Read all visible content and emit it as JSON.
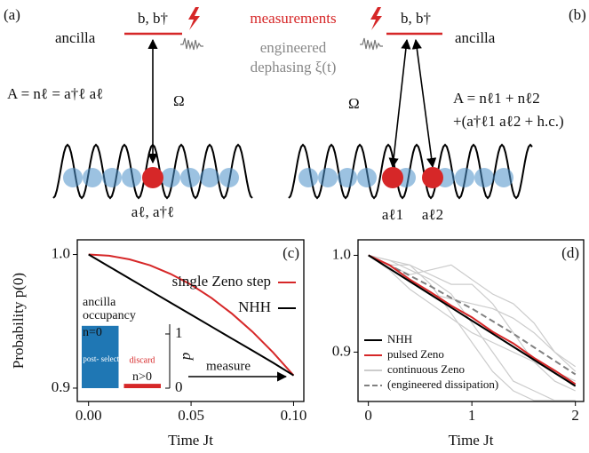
{
  "diagram": {
    "panel_a": "(a)",
    "panel_b": "(b)",
    "ancilla_left": "ancilla",
    "ancilla_right": "ancilla",
    "ops_left": "b, b†",
    "ops_right": "b, b†",
    "measurements": "measurements",
    "dephasing": [
      "engineered",
      "dephasing ξ(t)"
    ],
    "coupling_left": "A = nℓ = a†ℓ aℓ",
    "coupling_right": [
      "A = nℓ1 + nℓ2",
      "+(a†ℓ1 aℓ2 + h.c.)"
    ],
    "omega_left": "Ω",
    "omega_right": "Ω",
    "site_left": "aℓ, a†ℓ",
    "site_right": [
      "aℓ1",
      "aℓ2"
    ]
  },
  "chart_data": [
    {
      "type": "line",
      "panel": "(c)",
      "ylabel": "Probability p(0)",
      "xlabel": "Time Jt",
      "x": [
        0,
        0.01,
        0.02,
        0.03,
        0.04,
        0.05,
        0.06,
        0.07,
        0.08,
        0.09,
        0.1
      ],
      "xlim": [
        -0.0055,
        0.105
      ],
      "ylim": [
        0.89,
        1.011
      ],
      "xticks": [
        {
          "value": 0,
          "label": "0.00"
        },
        0.05,
        {
          "value": 0.1,
          "label": "0.10"
        }
      ],
      "yticks": [
        0.9,
        {
          "value": 1,
          "label": "1.0"
        }
      ],
      "series": [
        {
          "name": "single Zeno step",
          "color": "#d62728",
          "values": [
            1,
            0.9991,
            0.9964,
            0.9919,
            0.9855,
            0.9774,
            0.9674,
            0.9557,
            0.9421,
            0.9267,
            0.9095
          ]
        },
        {
          "name": "NHH",
          "color": "#000000",
          "values": [
            1,
            0.991,
            0.982,
            0.973,
            0.964,
            0.955,
            0.946,
            0.937,
            0.928,
            0.919,
            0.9095
          ]
        }
      ],
      "annotation": "measure"
    },
    {
      "type": "bar",
      "title": [
        "ancilla",
        "occupancy"
      ],
      "ylabel": "p",
      "categories": [
        "n=0",
        "n>0"
      ],
      "values": [
        1.15,
        0.08
      ],
      "colors": [
        "#1f77b4",
        "#d62728"
      ],
      "ylim": [
        0,
        1.18
      ],
      "yticks": [
        0,
        1
      ],
      "bar_labels": [
        "post- select",
        "discard"
      ]
    },
    {
      "type": "line",
      "panel": "(d)",
      "xlabel": "Time Jt",
      "x": [
        0,
        0.2,
        0.4,
        0.6,
        0.8,
        1,
        1.2,
        1.4,
        1.6,
        1.8,
        2
      ],
      "xlim": [
        -0.1,
        2.08
      ],
      "ylim": [
        0.849,
        1.016
      ],
      "xticks": [
        0,
        1,
        2
      ],
      "yticks": [
        0.9,
        {
          "value": 1,
          "label": "1.0"
        }
      ],
      "series": [
        {
          "name": "continuous Zeno",
          "color": "#cccccc",
          "trajectories": [
            [
              1,
              0.995,
              0.985,
              0.975,
              0.96,
              0.93,
              0.9,
              0.87,
              0.86,
              0.85,
              0.85
            ],
            [
              1,
              0.99,
              0.99,
              0.98,
              0.97,
              0.97,
              0.95,
              0.92,
              0.89,
              0.87,
              0.86
            ],
            [
              1,
              0.985,
              0.965,
              0.95,
              0.935,
              0.92,
              0.91,
              0.9,
              0.89,
              0.88,
              0.87
            ],
            [
              1,
              0.99,
              0.98,
              0.985,
              0.99,
              0.975,
              0.96,
              0.95,
              0.93,
              0.9,
              0.88
            ],
            [
              1,
              0.995,
              0.99,
              0.97,
              0.94,
              0.91,
              0.88,
              0.86,
              0.85,
              0.85,
              0.85
            ],
            [
              1,
              0.99,
              0.975,
              0.96,
              0.955,
              0.95,
              0.945,
              0.935,
              0.92,
              0.9,
              0.885
            ]
          ]
        },
        {
          "name": "(engineered dissipation)",
          "color": "#808080",
          "dashed": true,
          "values": [
            1,
            0.99,
            0.979,
            0.968,
            0.956,
            0.945,
            0.932,
            0.919,
            0.905,
            0.891,
            0.877
          ]
        },
        {
          "name": "pulsed Zeno",
          "color": "#d62728",
          "values": [
            1,
            0.99,
            0.975,
            0.962,
            0.948,
            0.936,
            0.921,
            0.909,
            0.894,
            0.881,
            0.867
          ]
        },
        {
          "name": "NHH",
          "color": "#000000",
          "values": [
            1,
            0.9865,
            0.973,
            0.9595,
            0.946,
            0.9325,
            0.919,
            0.9055,
            0.892,
            0.8785,
            0.865
          ]
        }
      ]
    }
  ]
}
